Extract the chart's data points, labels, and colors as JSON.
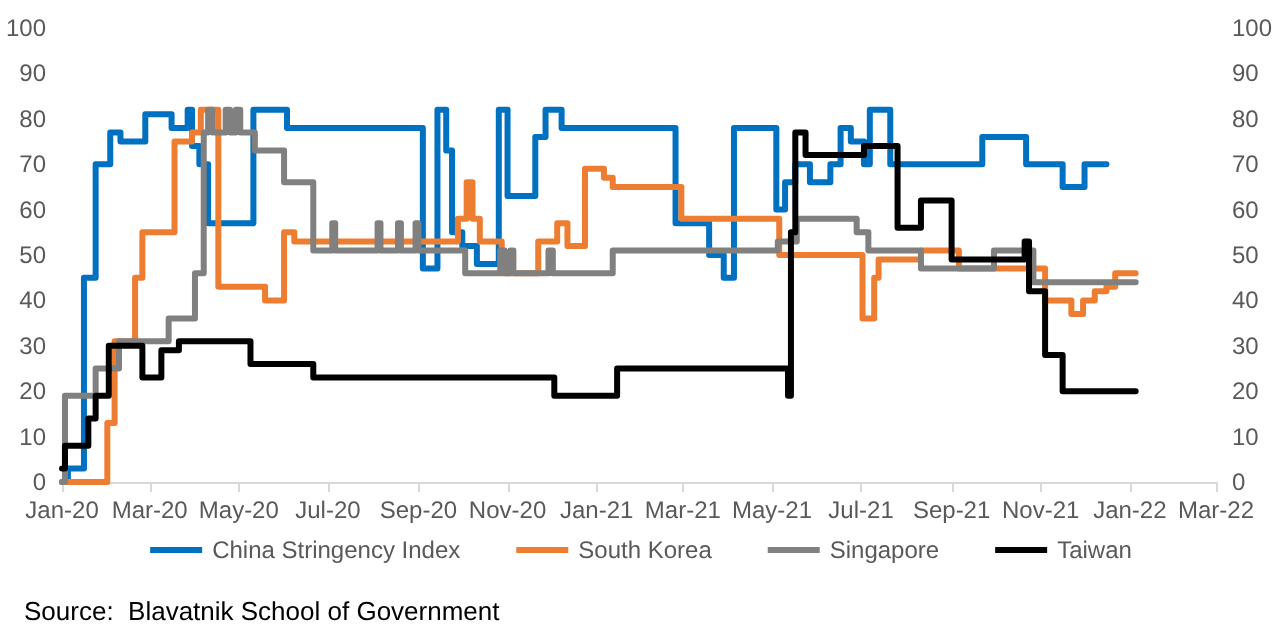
{
  "chart_data": {
    "type": "step",
    "xlim": [
      "2020-01",
      "2022-03"
    ],
    "xticks": [
      {
        "value": "2020-01",
        "label": "Jan-20"
      },
      {
        "value": "2020-03",
        "label": "Mar-20"
      },
      {
        "value": "2020-05",
        "label": "May-20"
      },
      {
        "value": "2020-07",
        "label": "Jul-20"
      },
      {
        "value": "2020-09",
        "label": "Sep-20"
      },
      {
        "value": "2020-11",
        "label": "Nov-20"
      },
      {
        "value": "2021-01",
        "label": "Jan-21"
      },
      {
        "value": "2021-03",
        "label": "Mar-21"
      },
      {
        "value": "2021-05",
        "label": "May-21"
      },
      {
        "value": "2021-07",
        "label": "Jul-21"
      },
      {
        "value": "2021-09",
        "label": "Sep-21"
      },
      {
        "value": "2021-11",
        "label": "Nov-21"
      },
      {
        "value": "2022-01",
        "label": "Jan-22"
      },
      {
        "value": "2022-03",
        "label": "Mar-22"
      }
    ],
    "ylim": [
      0,
      100
    ],
    "yticks": [
      0,
      10,
      20,
      30,
      40,
      50,
      60,
      70,
      80,
      90,
      100
    ],
    "y2lim": [
      0,
      100
    ],
    "y2ticks": [
      0,
      10,
      20,
      30,
      40,
      50,
      60,
      70,
      80,
      90,
      100
    ],
    "grid": false,
    "legend": "bottom",
    "marker": "none",
    "line_style": "solid",
    "annotations": [
      "Source:  Blavatnik School of Government"
    ],
    "series": [
      {
        "name": "China Stringency Index",
        "color": "#0070c0",
        "x": [
          "2020-01-01",
          "2020-01-05",
          "2020-01-16",
          "2020-01-24",
          "2020-02-03",
          "2020-02-10",
          "2020-02-27",
          "2020-03-16",
          "2020-03-27",
          "2020-03-30",
          "2020-04-04",
          "2020-04-10",
          "2020-05-11",
          "2020-06-03",
          "2020-09-04",
          "2020-09-14",
          "2020-09-20",
          "2020-09-24",
          "2020-10-01",
          "2020-10-11",
          "2020-10-26",
          "2020-11-01",
          "2020-11-20",
          "2020-11-27",
          "2020-12-08",
          "2021-02-24",
          "2021-03-19",
          "2021-03-29",
          "2021-04-05",
          "2021-05-04",
          "2021-05-10",
          "2021-05-17",
          "2021-05-27",
          "2021-06-10",
          "2021-06-17",
          "2021-06-24",
          "2021-07-03",
          "2021-07-07",
          "2021-07-21",
          "2021-09-22",
          "2021-10-22",
          "2021-11-16",
          "2021-12-01",
          "2021-12-16"
        ],
        "values": [
          0,
          3,
          45,
          70,
          77,
          75,
          81,
          78,
          82,
          74,
          70,
          57,
          82,
          78,
          47,
          82,
          73,
          55,
          52,
          48,
          82,
          63,
          76,
          82,
          78,
          57,
          50,
          45,
          78,
          60,
          66,
          70,
          66,
          70,
          78,
          75,
          70,
          82,
          70,
          76,
          70,
          65,
          70,
          70
        ]
      },
      {
        "name": "South Korea",
        "color": "#ed7d31",
        "x": [
          "2020-01-01",
          "2020-02-01",
          "2020-02-06",
          "2020-02-20",
          "2020-02-25",
          "2020-03-18",
          "2020-03-30",
          "2020-04-05",
          "2020-04-17",
          "2020-05-19",
          "2020-06-01",
          "2020-06-08",
          "2020-09-28",
          "2020-10-04",
          "2020-10-08",
          "2020-10-13",
          "2020-10-28",
          "2020-11-22",
          "2020-12-05",
          "2020-12-12",
          "2020-12-24",
          "2021-01-06",
          "2021-01-12",
          "2021-02-28",
          "2021-05-06",
          "2021-07-02",
          "2021-07-10",
          "2021-07-13",
          "2021-08-11",
          "2021-09-06",
          "2021-11-04",
          "2021-11-22",
          "2021-11-30",
          "2021-12-08",
          "2021-12-16",
          "2021-12-22",
          "2022-01-05"
        ],
        "values": [
          0,
          13,
          31,
          45,
          55,
          75,
          77,
          82,
          43,
          40,
          55,
          53,
          58,
          66,
          58,
          53,
          46,
          53,
          57,
          52,
          69,
          67,
          65,
          58,
          50,
          36,
          45,
          49,
          51,
          47,
          40,
          37,
          40,
          42,
          43,
          46,
          46
        ]
      },
      {
        "name": "Singapore",
        "color": "#808080",
        "x": [
          "2020-01-01",
          "2020-01-03",
          "2020-01-24",
          "2020-02-09",
          "2020-03-14",
          "2020-04-01",
          "2020-04-07",
          "2020-04-10",
          "2020-04-13",
          "2020-04-22",
          "2020-04-25",
          "2020-04-29",
          "2020-05-02",
          "2020-05-12",
          "2020-06-01",
          "2020-06-21",
          "2020-07-04",
          "2020-07-06",
          "2020-08-04",
          "2020-08-06",
          "2020-08-18",
          "2020-08-20",
          "2020-08-30",
          "2020-09-01",
          "2020-10-03",
          "2020-10-27",
          "2020-10-30",
          "2020-11-03",
          "2020-11-05",
          "2020-11-29",
          "2020-12-02",
          "2020-12-10",
          "2021-01-12",
          "2021-05-05",
          "2021-05-18",
          "2021-06-28",
          "2021-07-06",
          "2021-08-11",
          "2021-09-30",
          "2021-10-27",
          "2022-01-05"
        ],
        "values": [
          0,
          19,
          25,
          31,
          36,
          46,
          77,
          82,
          77,
          82,
          77,
          82,
          77,
          73,
          66,
          51,
          57,
          51,
          57,
          51,
          57,
          51,
          57,
          51,
          46,
          51,
          46,
          51,
          46,
          51,
          46,
          46,
          51,
          53,
          58,
          55,
          51,
          47,
          51,
          44,
          44
        ]
      },
      {
        "name": "Taiwan",
        "color": "#000000",
        "x": [
          "2020-01-01",
          "2020-01-03",
          "2020-01-19",
          "2020-01-24",
          "2020-02-02",
          "2020-02-25",
          "2020-03-09",
          "2020-03-21",
          "2020-05-09",
          "2020-06-21",
          "2020-12-03",
          "2021-01-15",
          "2021-05-12",
          "2021-05-14",
          "2021-05-17",
          "2021-05-24",
          "2021-07-03",
          "2021-07-26",
          "2021-08-11",
          "2021-09-01",
          "2021-10-21",
          "2021-10-24",
          "2021-11-04",
          "2021-11-16",
          "2022-01-05"
        ],
        "values": [
          3,
          8,
          14,
          19,
          30,
          23,
          29,
          31,
          26,
          23,
          19,
          25,
          19,
          55,
          77,
          72,
          74,
          56,
          62,
          49,
          53,
          42,
          28,
          20,
          20
        ]
      }
    ]
  }
}
